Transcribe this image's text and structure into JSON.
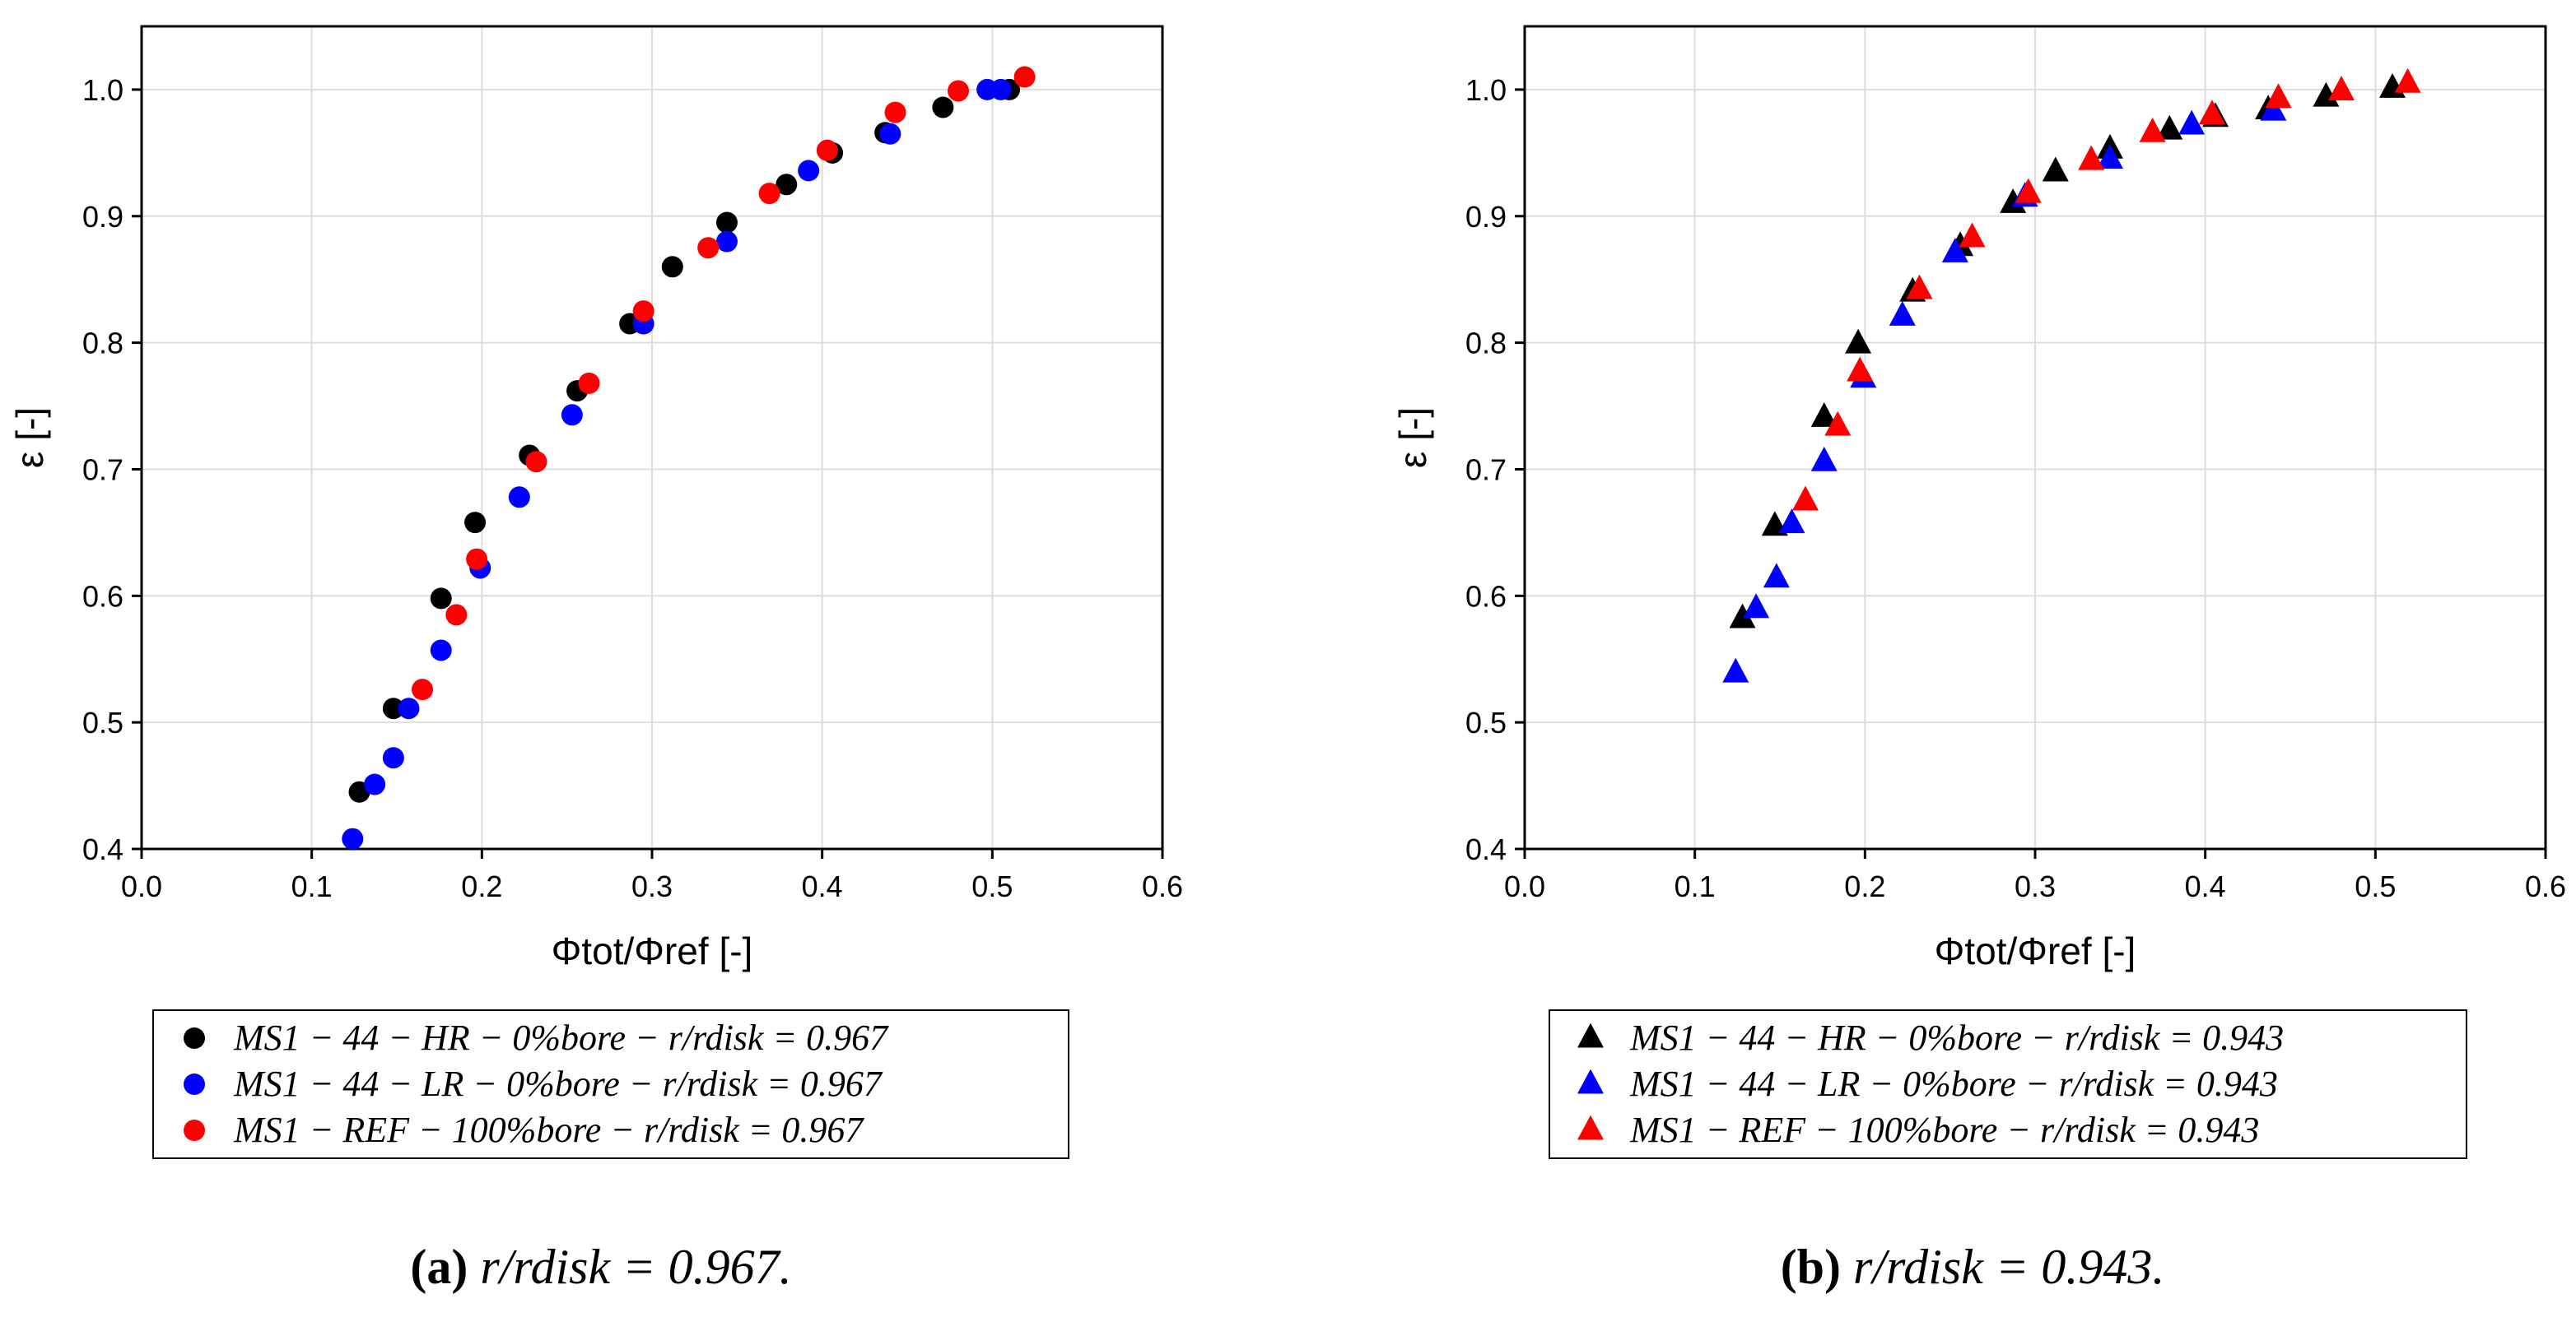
{
  "chart_data": [
    {
      "type": "scatter",
      "panel": "a",
      "xlabel": "Φtot/Φref [-]",
      "ylabel": "ε [-]",
      "xlim": [
        0.0,
        0.6
      ],
      "ylim": [
        0.4,
        1.05
      ],
      "xticks": [
        0.0,
        0.1,
        0.2,
        0.3,
        0.4,
        0.5,
        0.6
      ],
      "yticks": [
        0.4,
        0.5,
        0.6,
        0.7,
        0.8,
        0.9,
        1.0
      ],
      "xtick_labels": [
        "0.0",
        "0.1",
        "0.2",
        "0.3",
        "0.4",
        "0.5",
        "0.6"
      ],
      "ytick_labels": [
        "0.4",
        "0.5",
        "0.6",
        "0.7",
        "0.8",
        "0.9",
        "1.0"
      ],
      "grid": true,
      "legend_position": "below",
      "marker": "circle",
      "caption_label": "(a)",
      "caption_value": "r/rdisk = 0.967.",
      "series": [
        {
          "name": "MS1 − 44 − HR − 0%bore − r/rdisk = 0.967",
          "color": "#000000",
          "x": [
            0.128,
            0.148,
            0.176,
            0.196,
            0.228,
            0.256,
            0.287,
            0.312,
            0.344,
            0.379,
            0.406,
            0.437,
            0.471,
            0.51
          ],
          "y": [
            0.445,
            0.511,
            0.598,
            0.658,
            0.711,
            0.762,
            0.815,
            0.86,
            0.895,
            0.925,
            0.95,
            0.966,
            0.986,
            1.0
          ]
        },
        {
          "name": "MS1 − 44 − LR − 0%bore − r/rdisk = 0.967",
          "color": "#0000ff",
          "x": [
            0.124,
            0.137,
            0.148,
            0.157,
            0.176,
            0.199,
            0.222,
            0.253,
            0.295,
            0.344,
            0.392,
            0.44,
            0.497,
            0.505
          ],
          "y": [
            0.408,
            0.451,
            0.472,
            0.511,
            0.557,
            0.622,
            0.678,
            0.743,
            0.815,
            0.88,
            0.936,
            0.965,
            1.0,
            1.0
          ]
        },
        {
          "name": "MS1 − REF − 100%bore − r/rdisk = 0.967",
          "color": "#ff0000",
          "x": [
            0.165,
            0.185,
            0.197,
            0.232,
            0.263,
            0.295,
            0.333,
            0.369,
            0.403,
            0.443,
            0.48,
            0.519
          ],
          "y": [
            0.526,
            0.585,
            0.629,
            0.706,
            0.768,
            0.825,
            0.875,
            0.918,
            0.952,
            0.982,
            0.999,
            1.01
          ]
        }
      ]
    },
    {
      "type": "scatter",
      "panel": "b",
      "xlabel": "Φtot/Φref [-]",
      "ylabel": "ε [-]",
      "xlim": [
        0.0,
        0.6
      ],
      "ylim": [
        0.4,
        1.05
      ],
      "xticks": [
        0.0,
        0.1,
        0.2,
        0.3,
        0.4,
        0.5,
        0.6
      ],
      "yticks": [
        0.4,
        0.5,
        0.6,
        0.7,
        0.8,
        0.9,
        1.0
      ],
      "xtick_labels": [
        "0.0",
        "0.1",
        "0.2",
        "0.3",
        "0.4",
        "0.5",
        "0.6"
      ],
      "ytick_labels": [
        "0.4",
        "0.5",
        "0.6",
        "0.7",
        "0.8",
        "0.9",
        "1.0"
      ],
      "grid": true,
      "legend_position": "below",
      "marker": "triangle",
      "caption_label": "(b)",
      "caption_value": "r/rdisk = 0.943.",
      "series": [
        {
          "name": "MS1 − 44 − HR − 0%bore − r/rdisk = 0.943",
          "color": "#000000",
          "x": [
            0.128,
            0.147,
            0.176,
            0.196,
            0.228,
            0.256,
            0.287,
            0.312,
            0.344,
            0.379,
            0.406,
            0.437,
            0.471,
            0.51
          ],
          "y": [
            0.582,
            0.655,
            0.741,
            0.799,
            0.84,
            0.876,
            0.91,
            0.935,
            0.953,
            0.968,
            0.978,
            0.984,
            0.994,
            1.001
          ]
        },
        {
          "name": "MS1 − 44 − LR − 0%bore − r/rdisk = 0.943",
          "color": "#0000ff",
          "x": [
            0.124,
            0.136,
            0.148,
            0.157,
            0.176,
            0.199,
            0.222,
            0.253,
            0.294,
            0.344,
            0.392,
            0.44
          ],
          "y": [
            0.539,
            0.59,
            0.614,
            0.657,
            0.706,
            0.772,
            0.821,
            0.871,
            0.915,
            0.945,
            0.972,
            0.983
          ]
        },
        {
          "name": "MS1 − REF − 100%bore − r/rdisk = 0.943",
          "color": "#ff0000",
          "x": [
            0.165,
            0.184,
            0.197,
            0.232,
            0.263,
            0.296,
            0.333,
            0.369,
            0.404,
            0.443,
            0.48,
            0.519
          ],
          "y": [
            0.675,
            0.734,
            0.777,
            0.842,
            0.883,
            0.918,
            0.944,
            0.966,
            0.98,
            0.993,
            0.999,
            1.005
          ]
        }
      ]
    }
  ]
}
